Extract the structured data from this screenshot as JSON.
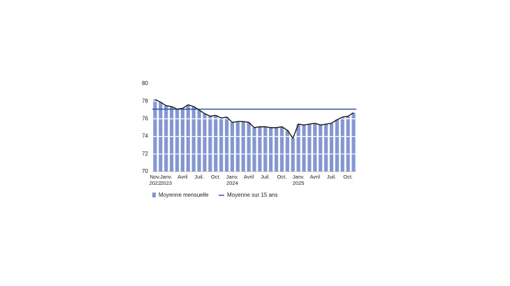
{
  "chart_data": {
    "type": "bar",
    "categories": [
      "Nov.\n2022",
      null,
      "Janv.\n2023",
      null,
      null,
      "Avril",
      null,
      null,
      "Juil.",
      null,
      null,
      "Oct.",
      null,
      null,
      "Janv.\n2024",
      null,
      null,
      "Avril",
      null,
      null,
      "Juil.",
      null,
      null,
      "Oct.",
      null,
      null,
      "Janv.\n2025",
      null,
      null,
      "Avril",
      null,
      null,
      "Juil.",
      null,
      null,
      "Oct.",
      null
    ],
    "series": [
      {
        "name": "Moyenne mensuelle",
        "color": "#8497d0",
        "line_color": "#1a1a1a",
        "values": [
          78.2,
          77.9,
          77.5,
          77.4,
          77.1,
          77.2,
          77.6,
          77.4,
          77.0,
          76.6,
          76.3,
          76.4,
          76.1,
          76.2,
          75.6,
          75.7,
          75.7,
          75.6,
          75.0,
          75.1,
          75.1,
          75.0,
          75.0,
          75.1,
          74.7,
          73.8,
          75.4,
          75.3,
          75.4,
          75.5,
          75.3,
          75.4,
          75.5,
          75.9,
          76.2,
          76.3,
          76.7
        ]
      },
      {
        "name": "Moyenne sur 15 ans",
        "color": "#2f54a8",
        "value": 77.1
      }
    ],
    "ylim": [
      70,
      80
    ],
    "yticks": [
      70,
      72,
      74,
      76,
      78,
      80
    ],
    "grid": true
  }
}
